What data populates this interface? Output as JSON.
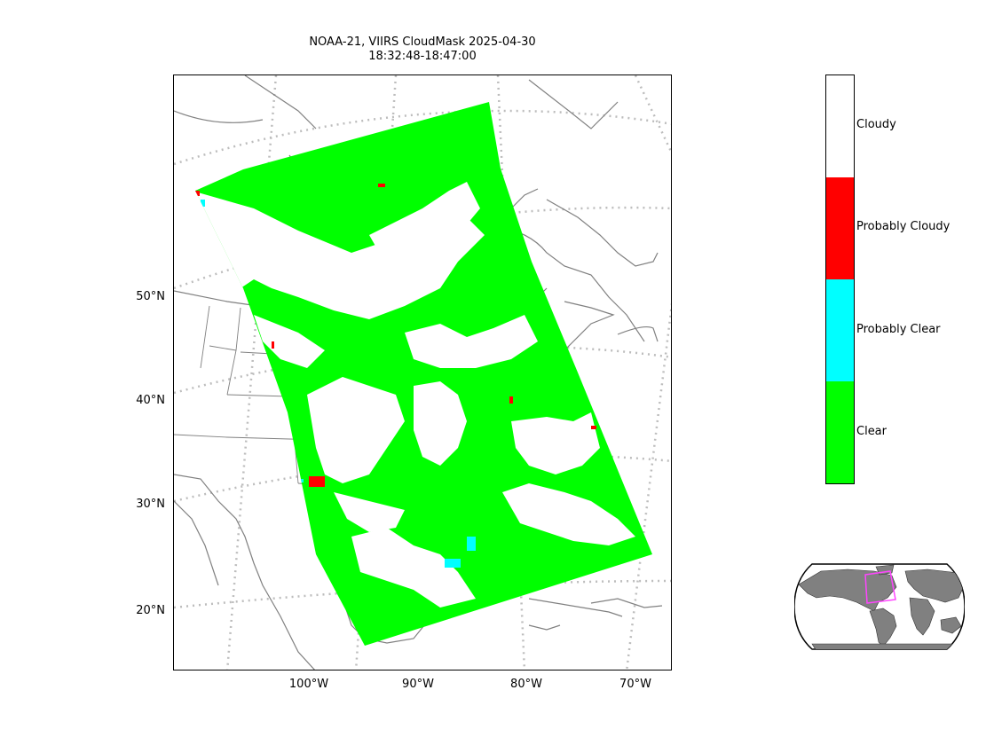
{
  "title": {
    "line1": "NOAA-21, VIIRS CloudMask 2025-04-30",
    "line2": "18:32:48-18:47:00"
  },
  "lat_labels": [
    "50°N",
    "40°N",
    "30°N",
    "20°N"
  ],
  "lon_labels": [
    "100°W",
    "90°W",
    "80°W",
    "70°W"
  ],
  "legend": {
    "categories": [
      {
        "label": "Cloudy",
        "color": "#ffffff"
      },
      {
        "label": "Probably Cloudy",
        "color": "#ff0000"
      },
      {
        "label": "Probably Clear",
        "color": "#00ffff"
      },
      {
        "label": "Clear",
        "color": "#00ff00"
      }
    ]
  },
  "colors": {
    "clear": "#00ff00",
    "cloudy": "#ffffff",
    "probably_cloudy": "#ff0000",
    "probably_clear": "#00ffff",
    "coastline": "#808080",
    "state_lines": "#808080",
    "graticule": "#bdbdbd",
    "inset_land": "#808080",
    "inset_box": "#ff44ff"
  }
}
